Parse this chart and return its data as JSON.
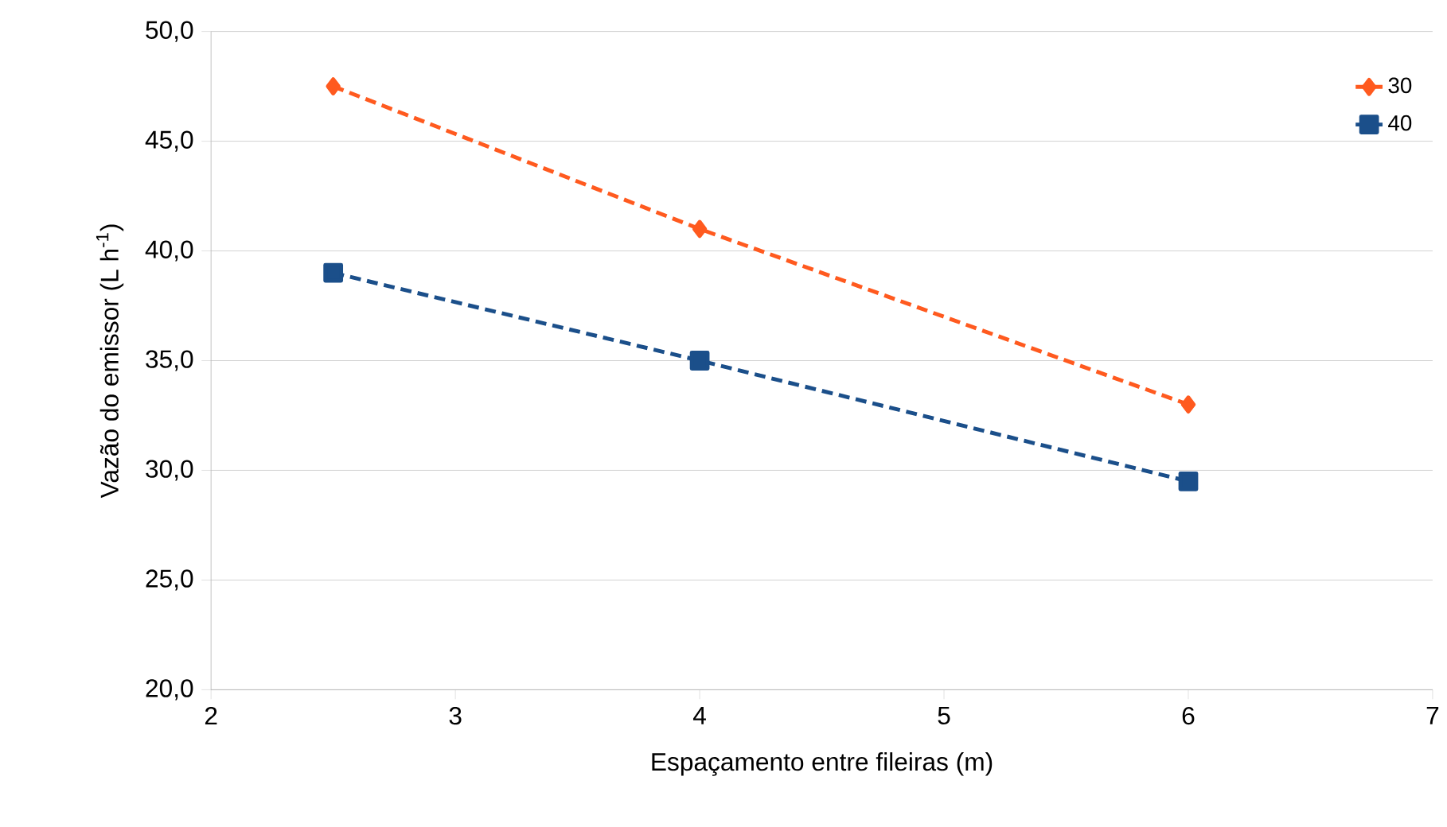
{
  "chart_data": {
    "type": "line",
    "xlabel": "Espaçamento entre fileiras (m)",
    "ylabel": "Vazão do emissor (L h$^{-1}$)",
    "x": [
      2.5,
      4,
      6
    ],
    "series": [
      {
        "name": "30",
        "color": "#ff5a1f",
        "marker": "diamond",
        "values": [
          47.5,
          41.0,
          33.0
        ]
      },
      {
        "name": "40",
        "color": "#1b4f8a",
        "marker": "square",
        "values": [
          39.0,
          35.0,
          29.5
        ]
      }
    ],
    "xlim": [
      2,
      7
    ],
    "xticks": [
      2,
      3,
      4,
      5,
      6,
      7
    ],
    "ylim": [
      20,
      50
    ],
    "yticks": [
      {
        "value": 20,
        "label": "20,0"
      },
      {
        "value": 25,
        "label": "25,0"
      },
      {
        "value": 30,
        "label": "30,0"
      },
      {
        "value": 35,
        "label": "35,0"
      },
      {
        "value": 40,
        "label": "40,0"
      },
      {
        "value": 45,
        "label": "45,0"
      },
      {
        "value": 50,
        "label": "50,0"
      }
    ],
    "grid": "y",
    "legend": "top right",
    "line_style": "dashed"
  }
}
